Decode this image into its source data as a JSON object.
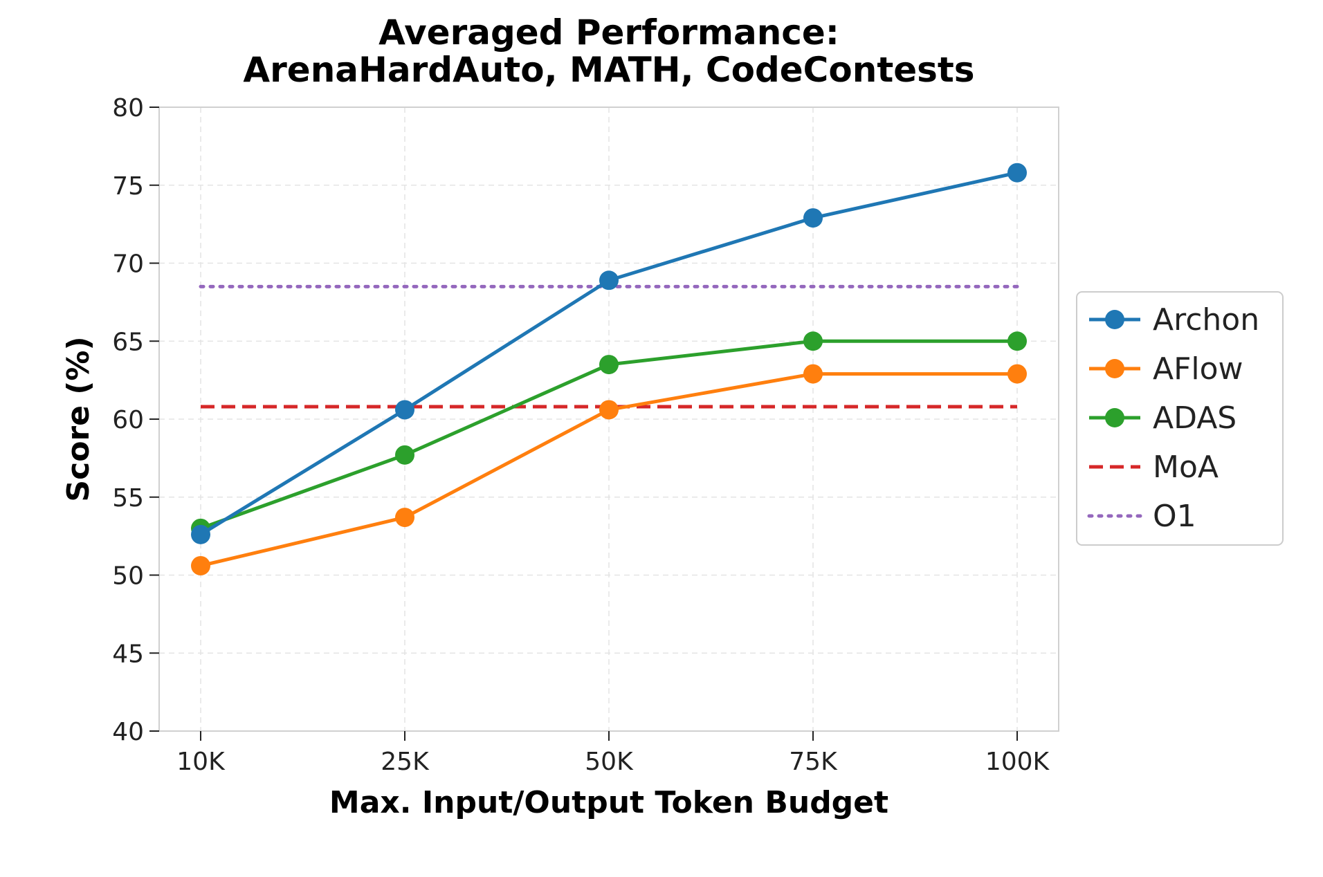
{
  "chart_data": {
    "type": "line",
    "title": "Averaged Performance:",
    "subtitle": "ArenaHardAuto, MATH, CodeContests",
    "xlabel": "Max. Input/Output Token Budget",
    "ylabel": "Score (%)",
    "categories": [
      "10K",
      "25K",
      "50K",
      "75K",
      "100K"
    ],
    "ylim": [
      40,
      80
    ],
    "yticks": [
      "40",
      "45",
      "50",
      "55",
      "60",
      "65",
      "70",
      "75",
      "80"
    ],
    "grid": true,
    "legend_position": "right",
    "series": [
      {
        "name": "Archon",
        "color": "#1f77b4",
        "style": "solid-marker",
        "values": [
          52.6,
          60.6,
          68.9,
          72.9,
          75.8
        ]
      },
      {
        "name": "AFlow",
        "color": "#ff7f0e",
        "style": "solid-marker",
        "values": [
          50.6,
          53.7,
          60.6,
          62.9,
          62.9
        ]
      },
      {
        "name": "ADAS",
        "color": "#2ca02c",
        "style": "solid-marker",
        "values": [
          53.0,
          57.7,
          63.5,
          65.0,
          65.0
        ]
      },
      {
        "name": "MoA",
        "color": "#d62728",
        "style": "dashed",
        "values": [
          60.8,
          60.8,
          60.8,
          60.8,
          60.8
        ]
      },
      {
        "name": "O1",
        "color": "#9467bd",
        "style": "dotted",
        "values": [
          68.5,
          68.5,
          68.5,
          68.5,
          68.5
        ]
      }
    ]
  }
}
